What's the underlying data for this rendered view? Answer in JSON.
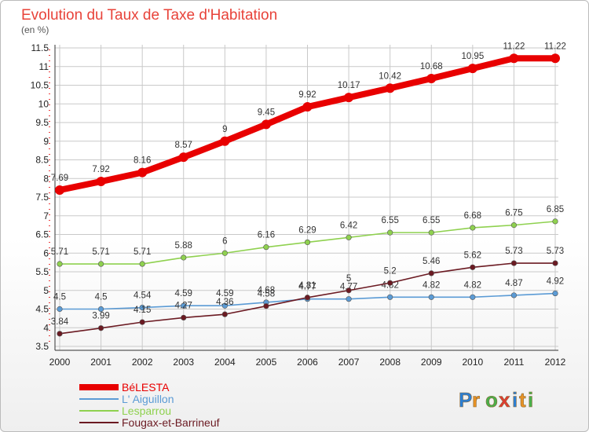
{
  "chart_data": {
    "type": "line",
    "title": "Evolution du Taux de Taxe d'Habitation",
    "subtitle": "(en %)",
    "xlabel": "",
    "ylabel": "",
    "x": [
      "2000",
      "2001",
      "2002",
      "2003",
      "2004",
      "2005",
      "2006",
      "2007",
      "2008",
      "2009",
      "2010",
      "2011",
      "2012"
    ],
    "ylim": [
      3.5,
      11.5
    ],
    "yticks": [
      "3.5",
      "4",
      "4.5",
      "5",
      "5.5",
      "6",
      "6.5",
      "7",
      "7.5",
      "8",
      "8.5",
      "9",
      "9.5",
      "10",
      "10.5",
      "11",
      "11.5"
    ],
    "grid": true,
    "legend_position": "bottom-left",
    "series": [
      {
        "name": "BéLESTA",
        "color": "#e80000",
        "values": [
          7.69,
          7.92,
          8.16,
          8.57,
          9,
          9.45,
          9.92,
          10.17,
          10.42,
          10.68,
          10.95,
          11.22,
          11.22
        ],
        "labels": [
          "7.69",
          "7.92",
          "8.16",
          "8.57",
          "9",
          "9.45",
          "9.92",
          "10.17",
          "10.42",
          "10.68",
          "10.95",
          "11.22",
          "11.22"
        ]
      },
      {
        "name": "L' Aiguillon",
        "color": "#5b9bd5",
        "values": [
          4.5,
          4.5,
          4.54,
          4.59,
          4.59,
          4.68,
          4.77,
          4.77,
          4.82,
          4.82,
          4.82,
          4.87,
          4.92
        ],
        "labels": [
          "4.5",
          "4.5",
          "4.54",
          "4.59",
          "4.59",
          "4.68",
          "4.77",
          "4.77",
          "4.82",
          "4.82",
          "4.82",
          "4.87",
          "4.92"
        ]
      },
      {
        "name": "Lesparrou",
        "color": "#8fd14f",
        "values": [
          5.71,
          5.71,
          5.71,
          5.88,
          6,
          6.16,
          6.29,
          6.42,
          6.55,
          6.55,
          6.68,
          6.75,
          6.85
        ],
        "labels": [
          "5.71",
          "5.71",
          "5.71",
          "5.88",
          "6",
          "6.16",
          "6.29",
          "6.42",
          "6.55",
          "6.55",
          "6.68",
          "6.75",
          "6.85"
        ]
      },
      {
        "name": "Fougax-et-Barrineuf",
        "color": "#6b1a22",
        "values": [
          3.84,
          3.99,
          4.15,
          4.27,
          4.36,
          4.58,
          4.81,
          5,
          5.2,
          5.46,
          5.62,
          5.73,
          5.73
        ],
        "labels": [
          "3.84",
          "3.99",
          "4.15",
          "4.27",
          "4.36",
          "4.58",
          "4.81",
          "5",
          "5.2",
          "5.46",
          "5.62",
          "5.73",
          "5.73"
        ]
      }
    ]
  },
  "logo": {
    "text": "PROXITI",
    "letters": [
      "P",
      "r",
      "o",
      "x",
      "i",
      "t",
      "i"
    ]
  }
}
